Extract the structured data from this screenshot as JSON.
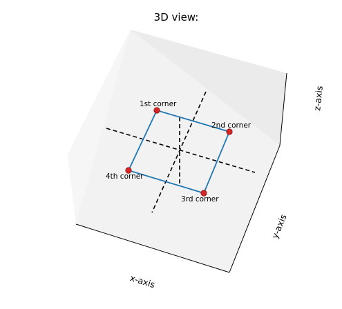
{
  "chart_data": {
    "type": "scatter",
    "title": "3D view:",
    "xlabel": "x-axis",
    "ylabel": "y-axis",
    "zlabel": "z-axis",
    "grid": false,
    "points": [
      {
        "label": "1st corner"
      },
      {
        "label": "2nd corner"
      },
      {
        "label": "3rd corner"
      },
      {
        "label": "4th corner"
      }
    ],
    "polygon_order": [
      "1st corner",
      "2nd corner",
      "3rd corner",
      "4th corner"
    ],
    "guides": [
      "center-line-a",
      "center-line-b",
      "center-line-c"
    ],
    "colors": {
      "polygon": "#1f77b4",
      "points": "#d62728",
      "guides": "#000000",
      "pane_left": "#f4f4f4",
      "pane_back": "#ececec",
      "pane_floor": "#f2f2f2"
    }
  }
}
